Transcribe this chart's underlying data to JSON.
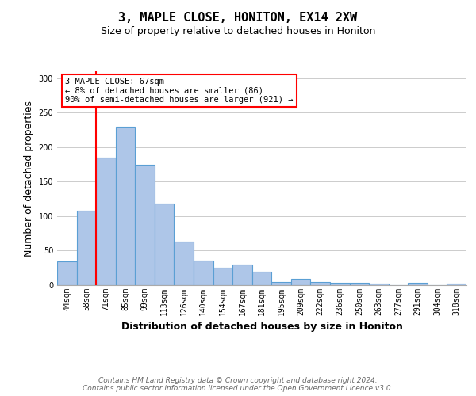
{
  "title_line1": "3, MAPLE CLOSE, HONITON, EX14 2XW",
  "title_line2": "Size of property relative to detached houses in Honiton",
  "xlabel": "Distribution of detached houses by size in Honiton",
  "ylabel": "Number of detached properties",
  "categories": [
    "44sqm",
    "58sqm",
    "71sqm",
    "85sqm",
    "99sqm",
    "113sqm",
    "126sqm",
    "140sqm",
    "154sqm",
    "167sqm",
    "181sqm",
    "195sqm",
    "209sqm",
    "222sqm",
    "236sqm",
    "250sqm",
    "263sqm",
    "277sqm",
    "291sqm",
    "304sqm",
    "318sqm"
  ],
  "values": [
    35,
    108,
    185,
    230,
    175,
    118,
    63,
    36,
    25,
    30,
    20,
    5,
    9,
    5,
    4,
    3,
    2,
    0,
    3,
    0,
    2
  ],
  "bar_color": "#aec6e8",
  "bar_edge_color": "#5a9fd4",
  "vline_color": "red",
  "annotation_text": "3 MAPLE CLOSE: 67sqm\n← 8% of detached houses are smaller (86)\n90% of semi-detached houses are larger (921) →",
  "annotation_box_color": "white",
  "annotation_box_edge_color": "red",
  "ylim": [
    0,
    310
  ],
  "yticks": [
    0,
    50,
    100,
    150,
    200,
    250,
    300
  ],
  "footer_text": "Contains HM Land Registry data © Crown copyright and database right 2024.\nContains public sector information licensed under the Open Government Licence v3.0.",
  "title_fontsize": 11,
  "subtitle_fontsize": 9,
  "axis_label_fontsize": 9,
  "tick_fontsize": 7,
  "annotation_fontsize": 7.5,
  "footer_fontsize": 6.5,
  "background_color": "white",
  "grid_color": "#cccccc"
}
